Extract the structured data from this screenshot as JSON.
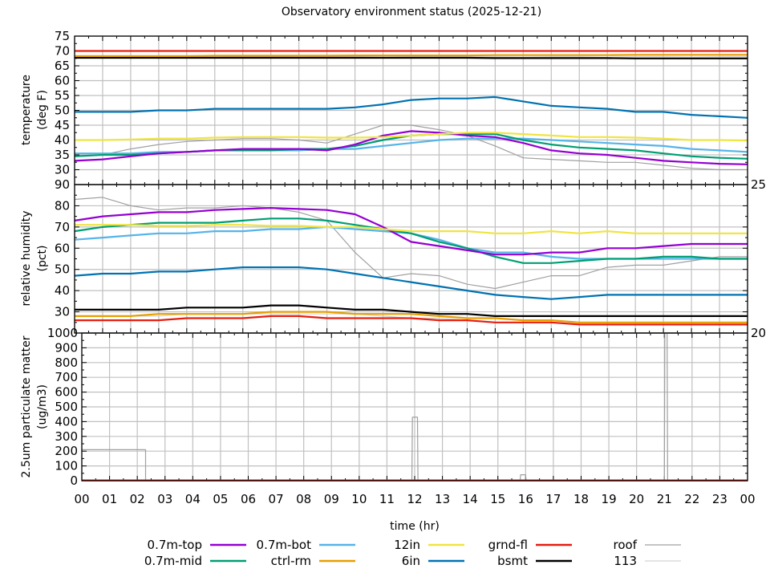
{
  "title": "Observatory environment status (2025-12-21)",
  "xlabel": "time (hr)",
  "xticks": [
    "00",
    "01",
    "02",
    "03",
    "04",
    "05",
    "06",
    "07",
    "08",
    "09",
    "10",
    "11",
    "12",
    "13",
    "14",
    "15",
    "16",
    "17",
    "18",
    "19",
    "20",
    "21",
    "22",
    "23",
    "00"
  ],
  "colors": {
    "0.7m-top": "#9400d3",
    "0.7m-mid": "#009e73",
    "0.7m-bot": "#56b4e9",
    "ctrl-rm": "#e69f00",
    "12in": "#f0e442",
    "6in": "#0072b2",
    "grnd-fl": "#e51e10",
    "bsmt": "#000000",
    "roof": "#a0a0a0",
    "113": "#d3d3d3"
  },
  "legend": {
    "placement": "bottom",
    "entries": [
      "0.7m-top",
      "0.7m-mid",
      "0.7m-bot",
      "ctrl-rm",
      "12in",
      "6in",
      "grnd-fl",
      "bsmt",
      "roof",
      "113"
    ]
  },
  "chart_data": [
    {
      "type": "line",
      "ylabel": [
        "temperature",
        "(deg F)"
      ],
      "ylim": [
        25,
        75
      ],
      "yticks": [
        25,
        30,
        35,
        40,
        45,
        50,
        55,
        60,
        65,
        70,
        75
      ],
      "xlim": [
        0,
        24
      ],
      "grid": true,
      "x": [
        0,
        1,
        2,
        3,
        4,
        5,
        6,
        7,
        8,
        9,
        10,
        11,
        12,
        13,
        14,
        15,
        16,
        17,
        18,
        19,
        20,
        21,
        22,
        23,
        24
      ],
      "series": [
        {
          "name": "113",
          "values": [
            68,
            67.8,
            68,
            67.8,
            68,
            67.9,
            68,
            68,
            67.9,
            68,
            68,
            67.8,
            68,
            68,
            68,
            68,
            67.9,
            68,
            68,
            67.8,
            68,
            68,
            67.9,
            68,
            68
          ]
        },
        {
          "name": "roof",
          "values": [
            34.5,
            35,
            37,
            38.5,
            39.5,
            40,
            40.5,
            40.5,
            40,
            39,
            42,
            45,
            45,
            43.5,
            41.5,
            38,
            34,
            33.5,
            33,
            32.5,
            32.5,
            31.5,
            30.5,
            30,
            30
          ]
        },
        {
          "name": "0.7m-bot",
          "values": [
            35.5,
            35.5,
            35.5,
            36,
            36,
            36.5,
            36.5,
            36.5,
            36.5,
            37,
            37,
            38,
            39,
            40,
            40.5,
            40.5,
            40.5,
            40,
            39.5,
            39,
            38.5,
            38,
            37,
            36.5,
            36
          ]
        },
        {
          "name": "0.7m-mid",
          "values": [
            34.5,
            35,
            35,
            35.5,
            36,
            36.5,
            36.5,
            36.5,
            37,
            37,
            38,
            40,
            41.5,
            42,
            42,
            42,
            40,
            38.5,
            37.5,
            37,
            36.5,
            35.5,
            34.5,
            34,
            33.7
          ]
        },
        {
          "name": "0.7m-top",
          "values": [
            33,
            33.5,
            34.5,
            35.5,
            36,
            36.5,
            37,
            37,
            37,
            36.5,
            38.5,
            41.5,
            43,
            42.5,
            41.5,
            41,
            39,
            36.5,
            35.5,
            35,
            34,
            33,
            32.5,
            32,
            31.8
          ]
        },
        {
          "name": "12in",
          "values": [
            40,
            40,
            40.2,
            40.5,
            40.5,
            40.8,
            41,
            41,
            41,
            40.8,
            40.8,
            41,
            41.5,
            42,
            42.5,
            42.5,
            42,
            41.5,
            41,
            41,
            40.8,
            40.5,
            40,
            40,
            39.8
          ]
        },
        {
          "name": "6in",
          "values": [
            49.5,
            49.5,
            49.5,
            50,
            50,
            50.5,
            50.5,
            50.5,
            50.5,
            50.5,
            51,
            52,
            53.5,
            54,
            54,
            54.5,
            53,
            51.5,
            51,
            50.5,
            49.5,
            49.5,
            48.5,
            48,
            47.5
          ]
        },
        {
          "name": "bsmt",
          "values": [
            67.7,
            67.7,
            67.7,
            67.7,
            67.7,
            67.7,
            67.7,
            67.7,
            67.7,
            67.7,
            67.7,
            67.7,
            67.7,
            67.7,
            67.7,
            67.6,
            67.6,
            67.6,
            67.6,
            67.6,
            67.5,
            67.5,
            67.5,
            67.5,
            67.5
          ]
        },
        {
          "name": "ctrl-rm",
          "values": [
            68.3,
            68.3,
            68.3,
            68.3,
            68.3,
            68.4,
            68.4,
            68.4,
            68.4,
            68.4,
            68.5,
            68.5,
            68.5,
            68.5,
            68.5,
            68.6,
            68.6,
            68.6,
            68.6,
            68.6,
            68.7,
            68.7,
            68.7,
            68.7,
            68.7
          ]
        },
        {
          "name": "grnd-fl",
          "values": [
            70,
            70,
            70,
            70,
            70,
            70,
            70,
            70,
            70,
            70,
            70,
            70,
            70,
            70,
            70,
            70,
            70,
            70,
            70,
            70,
            70,
            70,
            70,
            70,
            70
          ]
        }
      ]
    },
    {
      "type": "line",
      "ylabel": [
        "relative humidity",
        "(pct)"
      ],
      "ylim": [
        20,
        90
      ],
      "yticks": [
        20,
        30,
        40,
        50,
        60,
        70,
        80,
        90
      ],
      "xlim": [
        0,
        24
      ],
      "grid": true,
      "x": [
        0,
        1,
        2,
        3,
        4,
        5,
        6,
        7,
        8,
        9,
        10,
        11,
        12,
        13,
        14,
        15,
        16,
        17,
        18,
        19,
        20,
        21,
        22,
        23,
        24
      ],
      "series": [
        {
          "name": "113",
          "values": [
            28,
            28,
            28,
            28,
            29,
            29,
            29,
            29,
            29,
            29,
            29,
            28,
            27,
            27,
            26,
            25,
            25,
            25,
            24,
            24,
            24,
            24,
            24,
            24,
            24
          ]
        },
        {
          "name": "roof",
          "values": [
            83,
            84,
            80,
            78,
            79,
            79,
            80,
            79,
            77,
            73,
            58,
            46,
            48,
            47,
            43,
            41,
            44,
            47,
            47,
            51,
            52,
            52,
            54,
            56,
            56
          ]
        },
        {
          "name": "0.7m-bot",
          "values": [
            64,
            65,
            66,
            67,
            67,
            68,
            68,
            69,
            69,
            70,
            69,
            68,
            67,
            64,
            60,
            58,
            58,
            56,
            55,
            55,
            55,
            55,
            55,
            55,
            55
          ]
        },
        {
          "name": "0.7m-mid",
          "values": [
            68,
            70,
            71,
            72,
            72,
            72,
            73,
            74,
            74,
            73,
            71,
            69,
            67,
            63,
            60,
            56,
            53,
            53,
            54,
            55,
            55,
            56,
            56,
            55,
            55
          ]
        },
        {
          "name": "0.7m-top",
          "values": [
            73,
            75,
            76,
            77,
            77,
            78,
            78.5,
            79,
            78.5,
            78,
            76,
            70,
            63,
            61,
            59,
            57,
            57,
            58,
            58,
            60,
            60,
            61,
            62,
            62,
            62
          ]
        },
        {
          "name": "12in",
          "values": [
            71,
            71,
            71,
            70.5,
            70.5,
            71,
            71,
            70.5,
            70.5,
            70,
            70,
            69,
            68,
            68,
            68,
            67,
            67,
            68,
            67,
            68,
            67,
            67,
            67,
            67,
            67
          ]
        },
        {
          "name": "6in",
          "values": [
            47,
            48,
            48,
            49,
            49,
            50,
            51,
            51,
            51,
            50,
            48,
            46,
            44,
            42,
            40,
            38,
            37,
            36,
            37,
            38,
            38,
            38,
            38,
            38,
            38
          ]
        },
        {
          "name": "bsmt",
          "values": [
            31,
            31,
            31,
            31,
            32,
            32,
            32,
            33,
            33,
            32,
            31,
            31,
            30,
            29,
            29,
            28,
            28,
            28,
            28,
            28,
            28,
            28,
            28,
            28,
            28
          ]
        },
        {
          "name": "ctrl-rm",
          "values": [
            28,
            28,
            28,
            29,
            29,
            29,
            29,
            30,
            30,
            30,
            29,
            29,
            29,
            28,
            27,
            27,
            26,
            26,
            25,
            25,
            25,
            25,
            25,
            25,
            25
          ]
        },
        {
          "name": "grnd-fl",
          "values": [
            26,
            26,
            26,
            26,
            27,
            27,
            27,
            28,
            28,
            27,
            27,
            27,
            27,
            26,
            26,
            25,
            25,
            25,
            24,
            24,
            24,
            24,
            24,
            24,
            24
          ]
        }
      ]
    },
    {
      "type": "line",
      "ylabel": [
        "2.5um particulate matter",
        "(ug/m3)"
      ],
      "ylim": [
        0,
        1000
      ],
      "yticks": [
        0,
        100,
        200,
        300,
        400,
        500,
        600,
        700,
        800,
        900,
        1000
      ],
      "xlim": [
        0,
        24
      ],
      "grid": true,
      "series": [
        {
          "name": "roof",
          "x": [
            0,
            2.3,
            2.3,
            11.9,
            11.92,
            12.1,
            12.12,
            15.8,
            15.82,
            16,
            16.02,
            21,
            21.02,
            21.1,
            21.12,
            24
          ],
          "values": [
            210,
            210,
            0,
            0,
            430,
            430,
            0,
            0,
            40,
            40,
            0,
            0,
            1000,
            1000,
            0,
            0
          ]
        },
        {
          "name": "grnd-fl",
          "x": [
            0,
            24
          ],
          "values": [
            2,
            2
          ]
        }
      ]
    }
  ]
}
